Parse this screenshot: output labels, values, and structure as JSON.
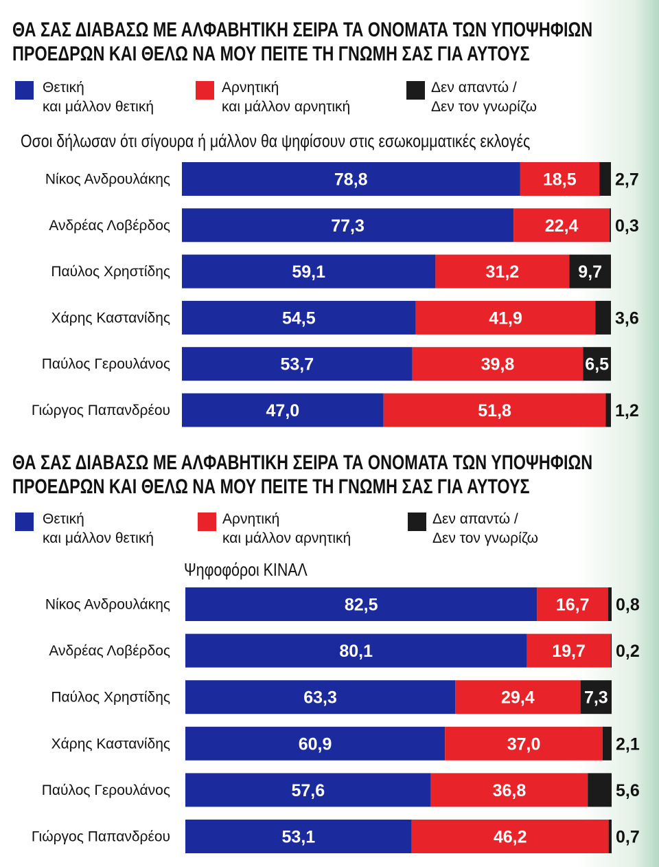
{
  "colors": {
    "positive": "#1b2a9c",
    "negative": "#e8242a",
    "noanswer": "#1b1b1b"
  },
  "legend": [
    {
      "line1": "Θετική",
      "line2": "και μάλλον θετική",
      "color": "#1b2a9c"
    },
    {
      "line1": "Αρνητική",
      "line2": "και μάλλον αρνητική",
      "color": "#e8242a"
    },
    {
      "line1": "Δεν απαντώ /",
      "line2": "Δεν τον γνωρίζω",
      "color": "#1b1b1b"
    }
  ],
  "chart_data": [
    {
      "type": "bar",
      "stacked": true,
      "orientation": "horizontal",
      "title_lines": [
        "ΘΑ ΣΑΣ ΔΙΑΒΑΣΩ ΜΕ ΑΛΦΑΒΗΤΙΚΗ ΣΕΙΡΑ ΤΑ ΟΝΟΜΑΤΑ ΤΩΝ ΥΠΟΨΗΦΙΩΝ",
        "ΠΡΟΕΔΡΩΝ ΚΑΙ ΘΕΛΩ ΝΑ ΜΟΥ ΠΕΙΤΕ ΤΗ ΓΝΩΜΗ ΣΑΣ ΓΙΑ ΑΥΤΟΥΣ"
      ],
      "subtitle": "Οσοι δήλωσαν ότι σίγουρα ή μάλλον θα ψηφίσουν στις εσωκομματικές εκλογές",
      "categories": [
        "Νίκος Ανδρουλάκης",
        "Ανδρέας Λοβέρδος",
        "Παύλος Χρηστίδης",
        "Χάρης Καστανίδης",
        "Παύλος Γερουλάνος",
        "Γιώργος Παπανδρέου"
      ],
      "series": [
        {
          "name": "Θετική και μάλλον θετική",
          "values": [
            "78,8",
            "77,3",
            "59,1",
            "54,5",
            "53,7",
            "47,0"
          ]
        },
        {
          "name": "Αρνητική και μάλλον αρνητική",
          "values": [
            "18,5",
            "22,4",
            "31,2",
            "41,9",
            "39,8",
            "51,8"
          ]
        },
        {
          "name": "Δεν απαντώ / Δεν τον γνωρίζω",
          "values": [
            "2,7",
            "0,3",
            "9,7",
            "3,6",
            "6,5",
            "1,2"
          ]
        }
      ],
      "xlim": [
        0,
        100
      ]
    },
    {
      "type": "bar",
      "stacked": true,
      "orientation": "horizontal",
      "title_lines": [
        "ΘΑ ΣΑΣ ΔΙΑΒΑΣΩ ΜΕ ΑΛΦΑΒΗΤΙΚΗ ΣΕΙΡΑ ΤΑ ΟΝΟΜΑΤΑ ΤΩΝ ΥΠΟΨΗΦΙΩΝ",
        "ΠΡΟΕΔΡΩΝ ΚΑΙ ΘΕΛΩ ΝΑ ΜΟΥ ΠΕΙΤΕ ΤΗ ΓΝΩΜΗ ΣΑΣ ΓΙΑ ΑΥΤΟΥΣ"
      ],
      "subtitle": "Ψηφοφόροι ΚΙΝΑΛ",
      "categories": [
        "Νίκος Ανδρουλάκης",
        "Ανδρέας Λοβέρδος",
        "Παύλος Χρηστίδης",
        "Χάρης Καστανίδης",
        "Παύλος Γερουλάνος",
        "Γιώργος Παπανδρέου"
      ],
      "series": [
        {
          "name": "Θετική και μάλλον θετική",
          "values": [
            "82,5",
            "80,1",
            "63,3",
            "60,9",
            "57,6",
            "53,1"
          ]
        },
        {
          "name": "Αρνητική και μάλλον αρνητική",
          "values": [
            "16,7",
            "19,7",
            "29,4",
            "37,0",
            "36,8",
            "46,2"
          ]
        },
        {
          "name": "Δεν απαντώ / Δεν τον γνωρίζω",
          "values": [
            "0,8",
            "0,2",
            "7,3",
            "2,1",
            "5,6",
            "0,7"
          ]
        }
      ],
      "xlim": [
        0,
        100
      ]
    }
  ]
}
